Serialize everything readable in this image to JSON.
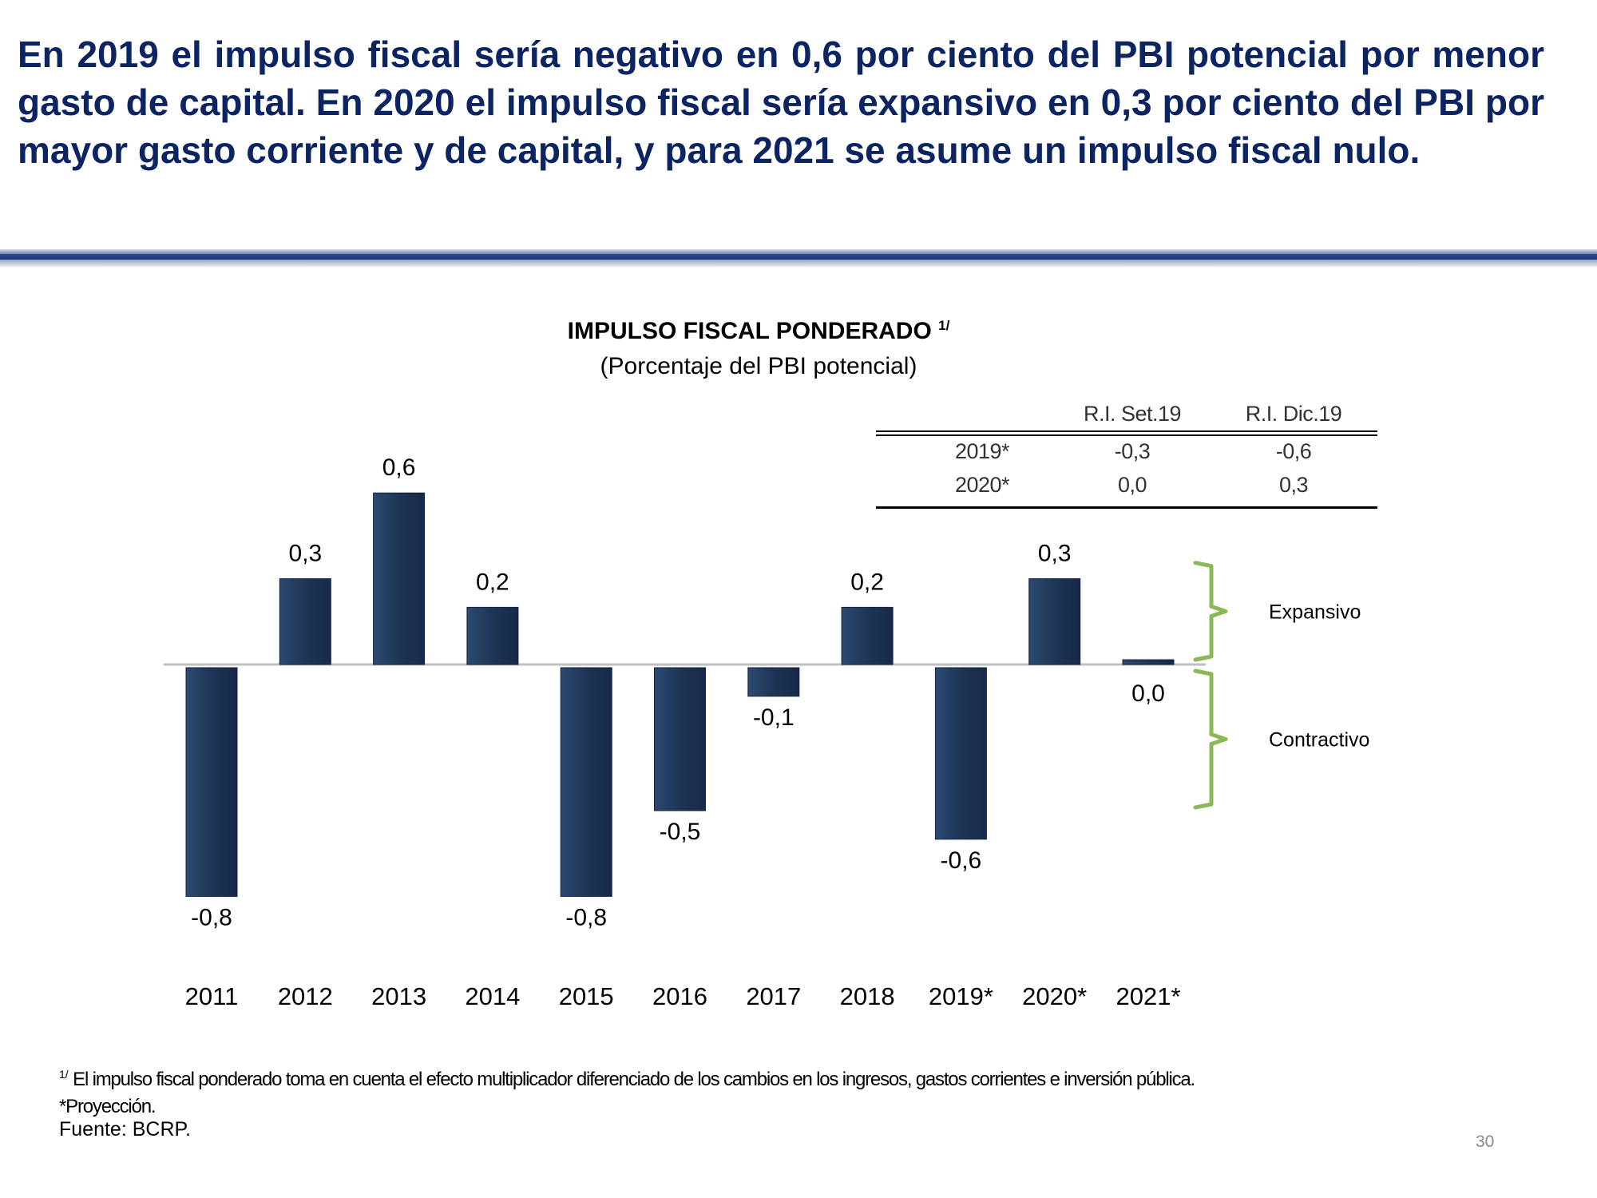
{
  "headline": "En 2019 el impulso fiscal sería negativo en 0,6 por ciento del PBI potencial por menor gasto de capital. En 2020 el impulso fiscal sería expansivo en 0,3 por ciento del PBI por mayor gasto corriente y de capital, y para 2021 se asume un impulso fiscal nulo.",
  "colors": {
    "headline": "#0c2462",
    "bar": "#1f3a5f",
    "bracket": "#8db857",
    "baseline": "#bfbfbf"
  },
  "chart_data": {
    "type": "bar",
    "title": "IMPULSO FISCAL PONDERADO",
    "title_note": "1/",
    "subtitle": "(Porcentaje del PBI potencial)",
    "categories": [
      "2011",
      "2012",
      "2013",
      "2014",
      "2015",
      "2016",
      "2017",
      "2018",
      "2019*",
      "2020*",
      "2021*"
    ],
    "values": [
      -0.8,
      0.3,
      0.6,
      0.2,
      -0.8,
      -0.5,
      -0.1,
      0.2,
      -0.6,
      0.3,
      0.0
    ],
    "data_labels": [
      "-0,8",
      "0,3",
      "0,6",
      "0,2",
      "-0,8",
      "-0,5",
      "-0,1",
      "0,2",
      "-0,6",
      "0,3",
      "0,0"
    ],
    "xlabel": "",
    "ylabel": "",
    "ylim": [
      -0.9,
      0.7
    ],
    "grid": false,
    "zones": [
      {
        "label": "Expansivo",
        "range": [
          0,
          0.35
        ]
      },
      {
        "label": "Contractivo",
        "range": [
          -0.5,
          0
        ]
      }
    ]
  },
  "ri_table": {
    "headers": [
      "",
      "R.I. Set.19",
      "R.I. Dic.19"
    ],
    "rows": [
      [
        "2019*",
        "-0,3",
        "-0,6"
      ],
      [
        "2020*",
        "0,0",
        "0,3"
      ]
    ]
  },
  "footnotes": {
    "note_marker": "1/",
    "note": "El impulso fiscal ponderado toma en cuenta el efecto multiplicador diferenciado de los cambios en los ingresos, gastos corrientes e inversión pública.",
    "projection": "*Proyección.",
    "source": "Fuente: BCRP."
  },
  "page_number": "30"
}
